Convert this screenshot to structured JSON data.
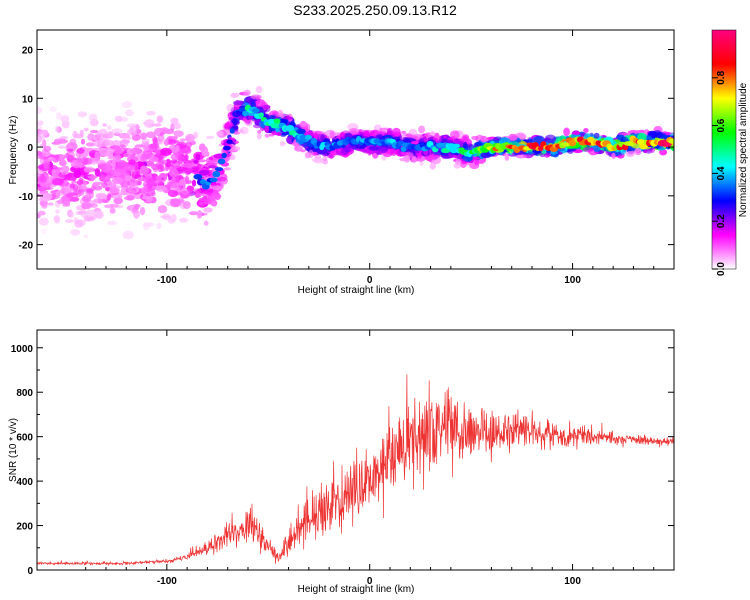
{
  "figure_title": "S233.2025.250.09.13.R12",
  "chart_data": [
    {
      "id": "spectrogram",
      "type": "heatmap",
      "xlabel": "Height of straight line (km)",
      "ylabel": "Frequency (Hz)",
      "xlim": [
        -164,
        150
      ],
      "ylim": [
        -25,
        24
      ],
      "xticks": [
        -100,
        0,
        100
      ],
      "yticks": [
        -20,
        -10,
        0,
        10,
        20
      ],
      "colorbar": {
        "label": "Normalized spectral amplitude",
        "range": [
          0,
          1
        ],
        "ticks": [
          "0.0",
          "0.2",
          "0.4",
          "0.6",
          "0.8"
        ],
        "tick_values": [
          0.0,
          0.2,
          0.4,
          0.6,
          0.8
        ],
        "colors": [
          "#ffffff",
          "#ff00ff",
          "#0000ff",
          "#00ffff",
          "#00ff00",
          "#ffff00",
          "#ff0000",
          "#ff0080"
        ]
      },
      "trace": {
        "x": [
          -164,
          -130,
          -100,
          -90,
          -80,
          -75,
          -70,
          -65,
          -60,
          -55,
          -50,
          -40,
          -30,
          -20,
          -10,
          0,
          10,
          20,
          30,
          40,
          50,
          60,
          70,
          80,
          90,
          100,
          110,
          120,
          130,
          140,
          150
        ],
        "freq": [
          -5,
          -5,
          -4,
          -5,
          -8,
          -5,
          0,
          7,
          8,
          7,
          5,
          4,
          1,
          0,
          1,
          1,
          1,
          0,
          0,
          0,
          -1,
          0,
          0,
          0,
          0,
          1,
          1,
          0,
          1,
          1,
          1
        ],
        "amplitude": [
          0.15,
          0.15,
          0.2,
          0.25,
          0.35,
          0.35,
          0.3,
          0.3,
          0.45,
          0.45,
          0.5,
          0.45,
          0.4,
          0.35,
          0.35,
          0.35,
          0.4,
          0.35,
          0.4,
          0.45,
          0.5,
          0.7,
          0.75,
          0.8,
          0.8,
          0.85,
          0.8,
          0.75,
          0.8,
          0.85,
          0.85
        ],
        "spread": [
          12,
          12,
          11,
          9,
          8,
          7,
          6,
          5,
          4,
          4,
          3,
          3,
          3,
          3,
          3,
          3,
          3,
          3,
          3,
          3,
          3,
          2,
          2,
          2,
          2,
          2,
          2,
          2,
          2,
          2,
          2
        ]
      }
    },
    {
      "id": "snr",
      "type": "line",
      "color": "#ee3333",
      "xlabel": "Height of straight line (km)",
      "ylabel": "SNR (10 * v/v)",
      "xlim": [
        -164,
        150
      ],
      "ylim": [
        0,
        1080
      ],
      "xticks": [
        -100,
        0,
        100
      ],
      "yticks": [
        0,
        200,
        400,
        600,
        800,
        1000
      ],
      "series": [
        {
          "name": "SNR",
          "x": [
            -164,
            -140,
            -120,
            -100,
            -90,
            -80,
            -75,
            -70,
            -65,
            -60,
            -55,
            -50,
            -45,
            -40,
            -35,
            -30,
            -25,
            -20,
            -15,
            -10,
            -5,
            0,
            5,
            10,
            15,
            20,
            25,
            30,
            35,
            40,
            45,
            50,
            55,
            60,
            70,
            80,
            90,
            100,
            110,
            120,
            130,
            140,
            150
          ],
          "mean": [
            30,
            30,
            30,
            40,
            60,
            100,
            130,
            160,
            180,
            200,
            170,
            100,
            60,
            120,
            170,
            210,
            250,
            290,
            320,
            350,
            380,
            420,
            450,
            480,
            520,
            560,
            590,
            620,
            640,
            650,
            650,
            640,
            630,
            620,
            620,
            620,
            610,
            600,
            600,
            590,
            590,
            580,
            580
          ],
          "noise": [
            8,
            8,
            8,
            10,
            20,
            40,
            60,
            80,
            100,
            110,
            100,
            60,
            40,
            80,
            110,
            130,
            150,
            170,
            180,
            190,
            200,
            200,
            200,
            200,
            210,
            220,
            230,
            230,
            220,
            200,
            190,
            170,
            150,
            130,
            110,
            90,
            70,
            60,
            50,
            40,
            30,
            25,
            20
          ]
        }
      ]
    }
  ]
}
